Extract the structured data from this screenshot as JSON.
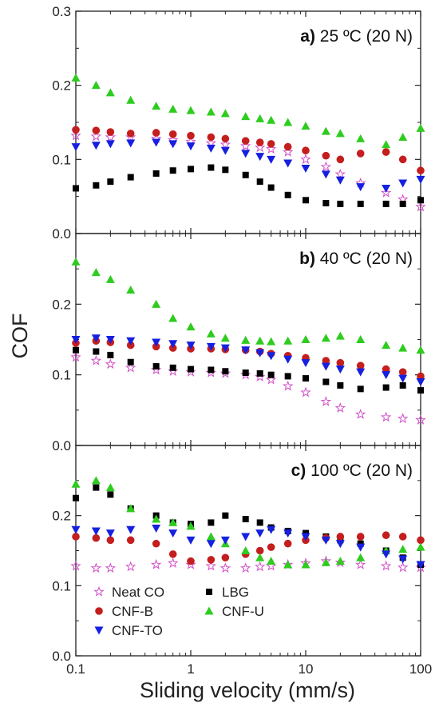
{
  "chart_data": [
    {
      "type": "scatter",
      "panel_letter": "a)",
      "panel_condition": "25 ºC (20 N)",
      "xscale": "log",
      "xlim": [
        0.1,
        100
      ],
      "ylim": [
        0.0,
        0.3
      ],
      "yticks": [
        "0.0",
        "0.1",
        "0.2",
        "0.3"
      ],
      "series": [
        {
          "key": "neat",
          "x": [
            0.1,
            0.15,
            0.2,
            0.3,
            0.5,
            0.7,
            1,
            1.5,
            2,
            3,
            4,
            5,
            7,
            10,
            15,
            20,
            30,
            50,
            70,
            100
          ],
          "values": [
            0.132,
            0.131,
            0.13,
            0.13,
            0.128,
            0.126,
            0.124,
            0.122,
            0.12,
            0.118,
            0.116,
            0.114,
            0.11,
            0.1,
            0.09,
            0.08,
            0.068,
            0.055,
            0.046,
            0.036
          ]
        },
        {
          "key": "lbg",
          "x": [
            0.1,
            0.15,
            0.2,
            0.3,
            0.5,
            0.7,
            1,
            1.5,
            2,
            3,
            4,
            5,
            7,
            10,
            15,
            20,
            30,
            50,
            70,
            100
          ],
          "values": [
            0.061,
            0.065,
            0.07,
            0.076,
            0.081,
            0.085,
            0.087,
            0.089,
            0.086,
            0.079,
            0.07,
            0.062,
            0.052,
            0.045,
            0.041,
            0.04,
            0.04,
            0.04,
            0.04,
            0.045
          ]
        },
        {
          "key": "cnfb",
          "x": [
            0.1,
            0.15,
            0.2,
            0.3,
            0.5,
            0.7,
            1,
            1.5,
            2,
            3,
            4,
            5,
            7,
            10,
            15,
            20,
            30,
            50,
            70,
            100
          ],
          "values": [
            0.14,
            0.139,
            0.137,
            0.135,
            0.136,
            0.134,
            0.132,
            0.13,
            0.128,
            0.125,
            0.123,
            0.121,
            0.117,
            0.112,
            0.105,
            0.1,
            0.108,
            0.11,
            0.1,
            0.085
          ]
        },
        {
          "key": "cnfu",
          "x": [
            0.1,
            0.15,
            0.2,
            0.3,
            0.5,
            0.7,
            1,
            1.5,
            2,
            3,
            4,
            5,
            7,
            10,
            15,
            20,
            30,
            50,
            70,
            100
          ],
          "values": [
            0.21,
            0.2,
            0.19,
            0.18,
            0.172,
            0.168,
            0.166,
            0.164,
            0.162,
            0.158,
            0.155,
            0.153,
            0.15,
            0.145,
            0.138,
            0.135,
            0.128,
            0.12,
            0.13,
            0.142
          ]
        },
        {
          "key": "cnfto",
          "x": [
            0.1,
            0.15,
            0.2,
            0.3,
            0.5,
            0.7,
            1,
            1.5,
            2,
            3,
            4,
            5,
            7,
            10,
            15,
            20,
            30,
            50,
            70,
            100
          ],
          "values": [
            0.117,
            0.119,
            0.121,
            0.122,
            0.123,
            0.121,
            0.118,
            0.115,
            0.112,
            0.108,
            0.104,
            0.1,
            0.095,
            0.088,
            0.08,
            0.072,
            0.063,
            0.061,
            0.068,
            0.073
          ]
        }
      ]
    },
    {
      "type": "scatter",
      "panel_letter": "b)",
      "panel_condition": "40 ºC (20 N)",
      "xscale": "log",
      "xlim": [
        0.1,
        100
      ],
      "ylim": [
        0.0,
        0.3
      ],
      "yticks": [
        "0.0",
        "0.1",
        "0.2"
      ],
      "series": [
        {
          "key": "neat",
          "x": [
            0.1,
            0.15,
            0.2,
            0.3,
            0.5,
            0.7,
            1,
            1.5,
            2,
            3,
            4,
            5,
            7,
            10,
            15,
            20,
            30,
            50,
            70,
            100
          ],
          "values": [
            0.125,
            0.12,
            0.115,
            0.11,
            0.107,
            0.105,
            0.104,
            0.103,
            0.102,
            0.1,
            0.097,
            0.093,
            0.084,
            0.075,
            0.062,
            0.053,
            0.044,
            0.04,
            0.038,
            0.036
          ]
        },
        {
          "key": "lbg",
          "x": [
            0.1,
            0.15,
            0.2,
            0.3,
            0.5,
            0.7,
            1,
            1.5,
            2,
            3,
            4,
            5,
            7,
            10,
            15,
            20,
            30,
            50,
            70,
            100
          ],
          "values": [
            0.135,
            0.133,
            0.128,
            0.118,
            0.112,
            0.11,
            0.108,
            0.107,
            0.105,
            0.103,
            0.102,
            0.1,
            0.098,
            0.095,
            0.09,
            0.085,
            0.08,
            0.082,
            0.085,
            0.078
          ]
        },
        {
          "key": "cnfb",
          "x": [
            0.1,
            0.15,
            0.2,
            0.3,
            0.5,
            0.7,
            1,
            1.5,
            2,
            3,
            4,
            5,
            7,
            10,
            15,
            20,
            30,
            50,
            70,
            100
          ],
          "values": [
            0.145,
            0.148,
            0.146,
            0.142,
            0.14,
            0.138,
            0.137,
            0.137,
            0.136,
            0.135,
            0.133,
            0.13,
            0.127,
            0.124,
            0.12,
            0.117,
            0.113,
            0.108,
            0.104,
            0.098
          ]
        },
        {
          "key": "cnfu",
          "x": [
            0.1,
            0.15,
            0.2,
            0.3,
            0.5,
            0.7,
            1,
            1.5,
            2,
            3,
            4,
            5,
            7,
            10,
            15,
            20,
            30,
            50,
            70,
            100
          ],
          "values": [
            0.26,
            0.245,
            0.235,
            0.22,
            0.2,
            0.18,
            0.168,
            0.158,
            0.152,
            0.149,
            0.148,
            0.147,
            0.148,
            0.15,
            0.152,
            0.155,
            0.15,
            0.142,
            0.138,
            0.135
          ]
        },
        {
          "key": "cnfto",
          "x": [
            0.1,
            0.15,
            0.2,
            0.3,
            0.5,
            0.7,
            1,
            1.5,
            2,
            3,
            4,
            5,
            7,
            10,
            15,
            20,
            30,
            50,
            70,
            100
          ],
          "values": [
            0.15,
            0.152,
            0.15,
            0.148,
            0.146,
            0.144,
            0.142,
            0.14,
            0.138,
            0.135,
            0.131,
            0.127,
            0.122,
            0.117,
            0.112,
            0.108,
            0.104,
            0.1,
            0.095,
            0.09
          ]
        }
      ]
    },
    {
      "type": "scatter",
      "panel_letter": "c)",
      "panel_condition": "100 ºC (20 N)",
      "xscale": "log",
      "xlim": [
        0.1,
        100
      ],
      "ylim": [
        0.0,
        0.3
      ],
      "yticks": [
        "0.0",
        "0.1",
        "0.2"
      ],
      "series": [
        {
          "key": "neat",
          "x": [
            0.1,
            0.15,
            0.2,
            0.3,
            0.5,
            0.7,
            1,
            1.5,
            2,
            3,
            4,
            5,
            7,
            10,
            15,
            20,
            30,
            50,
            70,
            100
          ],
          "values": [
            0.128,
            0.125,
            0.125,
            0.127,
            0.13,
            0.132,
            0.13,
            0.128,
            0.125,
            0.125,
            0.127,
            0.128,
            0.13,
            0.132,
            0.135,
            0.133,
            0.13,
            0.128,
            0.126,
            0.126
          ]
        },
        {
          "key": "lbg",
          "x": [
            0.1,
            0.15,
            0.2,
            0.3,
            0.5,
            0.7,
            1,
            1.5,
            2,
            3,
            4,
            5,
            7,
            10,
            15,
            20,
            30,
            50,
            70,
            100
          ],
          "values": [
            0.225,
            0.24,
            0.23,
            0.21,
            0.2,
            0.19,
            0.188,
            0.19,
            0.2,
            0.195,
            0.19,
            0.183,
            0.178,
            0.175,
            0.17,
            0.165,
            0.16,
            0.15,
            0.14,
            0.13
          ]
        },
        {
          "key": "cnfb",
          "x": [
            0.1,
            0.15,
            0.2,
            0.3,
            0.5,
            0.7,
            1,
            1.5,
            2,
            3,
            4,
            5,
            7,
            10,
            15,
            20,
            30,
            50,
            70,
            100
          ],
          "values": [
            0.17,
            0.168,
            0.165,
            0.165,
            0.16,
            0.145,
            0.135,
            0.137,
            0.14,
            0.145,
            0.15,
            0.155,
            0.16,
            0.165,
            0.168,
            0.17,
            0.17,
            0.172,
            0.17,
            0.165
          ]
        },
        {
          "key": "cnfu",
          "x": [
            0.1,
            0.15,
            0.2,
            0.3,
            0.5,
            0.7,
            1,
            1.5,
            2,
            3,
            4,
            5,
            7,
            10,
            15,
            20,
            30,
            50,
            70,
            100
          ],
          "values": [
            0.245,
            0.25,
            0.24,
            0.21,
            0.195,
            0.19,
            0.185,
            0.17,
            0.16,
            0.15,
            0.14,
            0.135,
            0.13,
            0.13,
            0.133,
            0.135,
            0.14,
            0.15,
            0.152,
            0.155
          ]
        },
        {
          "key": "cnfto",
          "x": [
            0.1,
            0.15,
            0.2,
            0.3,
            0.5,
            0.7,
            1,
            1.5,
            2,
            3,
            4,
            5,
            7,
            10,
            15,
            20,
            30,
            50,
            70,
            100
          ],
          "values": [
            0.18,
            0.178,
            0.175,
            0.18,
            0.182,
            0.175,
            0.165,
            0.16,
            0.165,
            0.17,
            0.175,
            0.18,
            0.175,
            0.17,
            0.165,
            0.16,
            0.155,
            0.145,
            0.138,
            0.13
          ]
        }
      ]
    }
  ],
  "series_styles": [
    {
      "key": "neat",
      "name": "Neat CO",
      "marker": "star-open",
      "color": "#d24fc8"
    },
    {
      "key": "cnfb",
      "name": "CNF-B",
      "marker": "circle",
      "color": "#c41e1e"
    },
    {
      "key": "cnfto",
      "name": "CNF-TO",
      "marker": "triangle-down",
      "color": "#1520e0"
    },
    {
      "key": "lbg",
      "name": "LBG",
      "marker": "square",
      "color": "#000000"
    },
    {
      "key": "cnfu",
      "name": "CNF-U",
      "marker": "triangle-up",
      "color": "#2ecc1e"
    }
  ],
  "axes": {
    "xlabel": "Sliding velocity (mm/s)",
    "ylabel": "COF",
    "xticks": [
      "0.1",
      "1",
      "10",
      "100"
    ],
    "grid": false
  },
  "legend": {
    "position": "bottom-left",
    "panel": 3
  }
}
